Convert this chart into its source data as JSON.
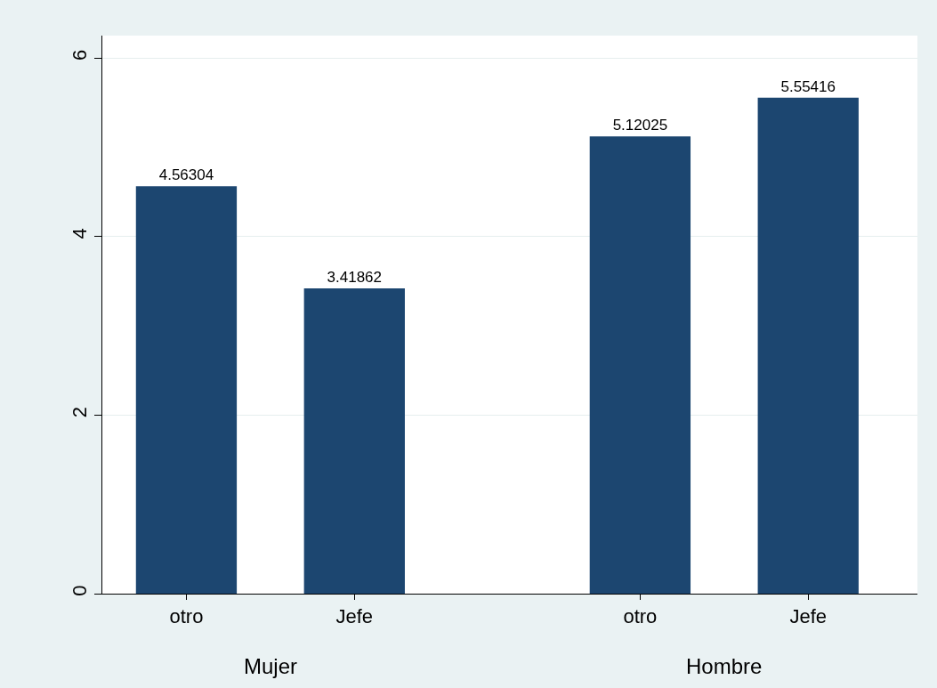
{
  "chart_data": {
    "type": "bar",
    "categories": [
      "otro",
      "Jefe",
      "otro",
      "Jefe"
    ],
    "values": [
      4.56304,
      3.41862,
      5.12025,
      5.55416
    ],
    "color": "#1c4670",
    "ylim": [
      0,
      6.25
    ],
    "yticks": [
      0,
      2,
      4,
      6
    ],
    "grid": "y",
    "data_labels": true,
    "annotations": [
      "Mujer",
      "Hombre"
    ]
  }
}
